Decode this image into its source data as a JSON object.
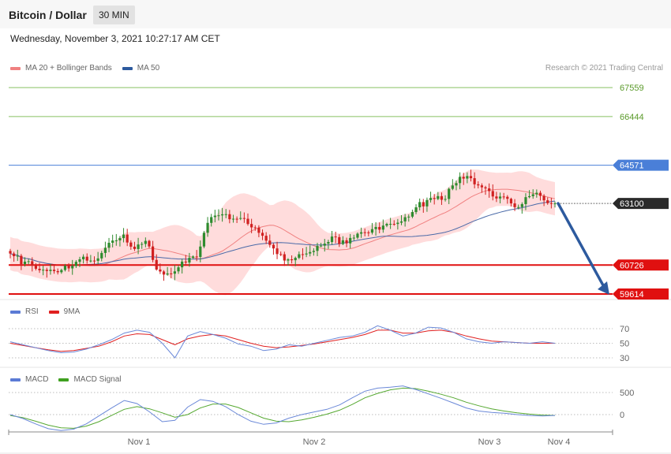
{
  "header": {
    "title": "Bitcoin / Dollar",
    "interval": "30 MIN"
  },
  "datetime": "Wednesday, November 3, 2021 10:27:17 AM CET",
  "credit": "Research © 2021 Trading Central",
  "legend_main": [
    {
      "label": "MA 20 + Bollinger Bands",
      "color": "#f08080"
    },
    {
      "label": "MA 50",
      "color": "#2d5a9e"
    }
  ],
  "legend_rsi": [
    {
      "label": "RSI",
      "color": "#5b7bd5"
    },
    {
      "label": "9MA",
      "color": "#e02020"
    }
  ],
  "legend_macd": [
    {
      "label": "MACD",
      "color": "#5b7bd5"
    },
    {
      "label": "MACD Signal",
      "color": "#3fa020"
    }
  ],
  "colors": {
    "up": "#2e8b2e",
    "down": "#d02020",
    "bb_fill": "#ffd6d6",
    "ma20": "#f08080",
    "ma50": "#4a6aa8",
    "green_level": "#88c060",
    "blue_level": "#4a7fd8",
    "red_level": "#e01010",
    "current_tag": "#2a2a2a",
    "arrow": "#2d5a9e",
    "rsi": "#6a88d8",
    "rsi_ma": "#e02020",
    "macd": "#6a88d8",
    "macd_signal": "#55a830"
  },
  "chart_data": {
    "type": "candlestick",
    "x_ticks": [
      "Nov 1",
      "Nov 2",
      "Nov 3",
      "Nov 4"
    ],
    "ylim": [
      59400,
      68200
    ],
    "levels": [
      {
        "value": 67559,
        "label": "67559",
        "kind": "resistance-green"
      },
      {
        "value": 66444,
        "label": "66444",
        "kind": "resistance-green"
      },
      {
        "value": 64571,
        "label": "64571",
        "kind": "resistance-blue"
      },
      {
        "value": 63100,
        "label": "63100",
        "kind": "current"
      },
      {
        "value": 60726,
        "label": "60726",
        "kind": "support-red"
      },
      {
        "value": 59614,
        "label": "59614",
        "kind": "support-red"
      }
    ],
    "projection": {
      "from": 63100,
      "to": 59614
    },
    "key_closes": [
      61300,
      60800,
      60700,
      60500,
      60500,
      60800,
      61000,
      60900,
      61500,
      61900,
      61300,
      61600,
      60400,
      60300,
      60800,
      61000,
      62500,
      62800,
      62500,
      62400,
      62000,
      61500,
      61000,
      60900,
      61300,
      61400,
      61700,
      61600,
      61900,
      62000,
      62200,
      62400,
      62500,
      63000,
      63300,
      63250,
      64000,
      64200,
      63650,
      63400,
      63350,
      62900,
      63550,
      63300,
      63100
    ],
    "rsi": {
      "ticks": [
        70,
        50,
        30
      ],
      "values": [
        52,
        48,
        44,
        40,
        37,
        38,
        42,
        48,
        55,
        64,
        68,
        65,
        50,
        30,
        60,
        66,
        62,
        57,
        49,
        46,
        40,
        42,
        48,
        46,
        50,
        54,
        58,
        60,
        65,
        74,
        68,
        60,
        64,
        72,
        71,
        65,
        56,
        52,
        50,
        52,
        51,
        50,
        52,
        50
      ],
      "ma_values": [
        50,
        47,
        44,
        41,
        39,
        40,
        43,
        46,
        52,
        60,
        63,
        62,
        55,
        48,
        56,
        60,
        62,
        60,
        55,
        50,
        46,
        44,
        45,
        47,
        49,
        52,
        55,
        58,
        62,
        68,
        68,
        64,
        64,
        67,
        68,
        65,
        60,
        56,
        53,
        52,
        51,
        50,
        50,
        50
      ]
    },
    "macd": {
      "ticks": [
        500,
        0
      ],
      "values": [
        0,
        -90,
        -210,
        -320,
        -360,
        -330,
        -210,
        -30,
        150,
        320,
        250,
        60,
        -160,
        -130,
        170,
        340,
        300,
        180,
        0,
        -150,
        -220,
        -190,
        -80,
        0,
        60,
        120,
        220,
        380,
        530,
        600,
        620,
        650,
        570,
        470,
        370,
        260,
        150,
        80,
        50,
        30,
        0,
        -20,
        -30,
        -20
      ],
      "signal_values": [
        -20,
        -70,
        -150,
        -240,
        -300,
        -310,
        -260,
        -160,
        -20,
        120,
        180,
        130,
        40,
        -60,
        0,
        150,
        240,
        240,
        160,
        40,
        -80,
        -150,
        -160,
        -120,
        -60,
        10,
        100,
        230,
        380,
        480,
        560,
        600,
        590,
        530,
        460,
        380,
        280,
        200,
        130,
        80,
        40,
        10,
        -10,
        -20
      ]
    }
  }
}
